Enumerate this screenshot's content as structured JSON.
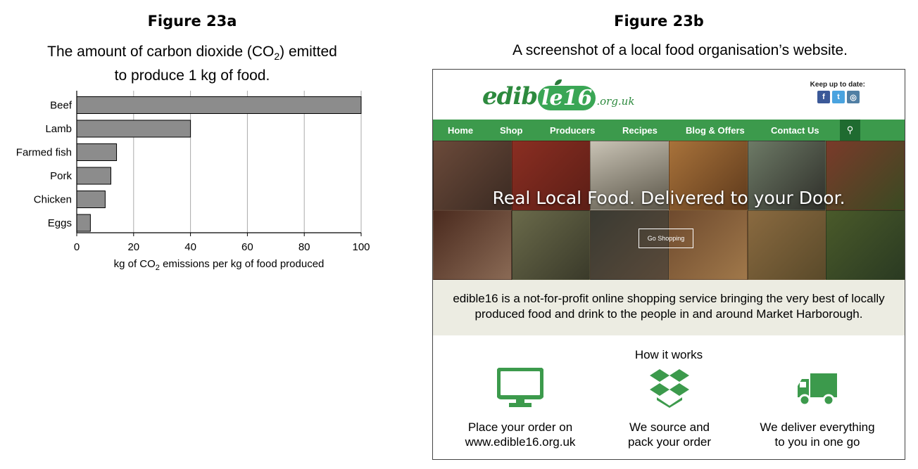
{
  "figure_a": {
    "label": "Figure 23a",
    "title_line1_pre": "The amount of carbon dioxide (CO",
    "title_line1_sub": "2",
    "title_line1_post": ") emitted",
    "title_line2": "to produce 1 kg of food."
  },
  "figure_b": {
    "label": "Figure 23b",
    "title": "A screenshot of a local food organisation’s website."
  },
  "chart_data": {
    "type": "bar",
    "orientation": "horizontal",
    "categories": [
      "Beef",
      "Lamb",
      "Farmed fish",
      "Pork",
      "Chicken",
      "Eggs"
    ],
    "values": [
      100,
      40,
      14,
      12,
      10,
      4.8
    ],
    "xlim": [
      0,
      100
    ],
    "xticks": [
      0,
      20,
      40,
      60,
      80,
      100
    ],
    "xlabel_pre": "kg of CO",
    "xlabel_sub": "2",
    "xlabel_post": " emissions per kg of food produced",
    "grid": "vertical",
    "bar_color": "#8c8c8c"
  },
  "website": {
    "logo_word1": "edib",
    "logo_ball": "le16",
    "logo_word2": ".org.uk",
    "keep_label": "Keep up to date:",
    "social": [
      "f",
      "t",
      "◎"
    ],
    "nav": [
      "Home",
      "Shop",
      "Producers",
      "Recipes",
      "Blog & Offers",
      "Contact Us"
    ],
    "hero_text": "Real Local Food. Delivered to your Door.",
    "go_button": "Go Shopping",
    "description_line1": "edible16 is a not-for-profit online shopping service bringing the very best of locally",
    "description_line2": "produced food and drink to the people in and around Market Harborough.",
    "how_title": "How it works",
    "steps": [
      {
        "icon": "monitor-icon",
        "line1": "Place your order on",
        "line2": "www.edible16.org.uk"
      },
      {
        "icon": "box-icon",
        "line1": "We source and",
        "line2": "pack your order"
      },
      {
        "icon": "truck-icon",
        "line1": "We deliver everything",
        "line2": "to you in one go"
      }
    ],
    "colors": {
      "green": "#3c9a4c",
      "dark_green": "#1f6b30",
      "beige": "#ecece2"
    }
  }
}
